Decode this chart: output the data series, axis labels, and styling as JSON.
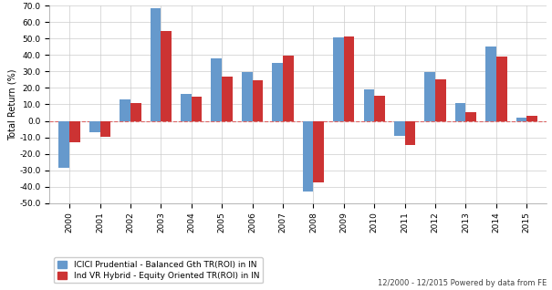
{
  "years": [
    2000,
    2001,
    2002,
    2003,
    2004,
    2005,
    2006,
    2007,
    2008,
    2009,
    2010,
    2011,
    2012,
    2013,
    2014,
    2015
  ],
  "icici": [
    -28.5,
    -7.0,
    13.0,
    68.5,
    16.5,
    38.0,
    29.5,
    35.5,
    -43.0,
    51.0,
    19.0,
    -9.0,
    29.5,
    11.0,
    45.0,
    2.0
  ],
  "vr_hybrid": [
    -13.0,
    -9.5,
    11.0,
    54.5,
    14.5,
    27.0,
    24.5,
    39.5,
    -37.5,
    51.5,
    15.5,
    -14.5,
    25.0,
    5.5,
    39.0,
    3.0
  ],
  "bar_color_icici": "#6699CC",
  "bar_color_vr": "#CC3333",
  "ylabel": "Total Return (%)",
  "ylim_min": -50.0,
  "ylim_max": 70.0,
  "yticks": [
    -50.0,
    -40.0,
    -30.0,
    -20.0,
    -10.0,
    0.0,
    10.0,
    20.0,
    30.0,
    40.0,
    50.0,
    60.0,
    70.0
  ],
  "legend_icici": "ICICI Prudential - Balanced Gth TR(ROI) in IN",
  "legend_vr": "Ind VR Hybrid - Equity Oriented TR(ROI) in IN",
  "footnote": "12/2000 - 12/2015 Powered by data from FE",
  "bg_color": "#FFFFFF",
  "grid_color": "#CCCCCC",
  "bar_width": 0.35
}
